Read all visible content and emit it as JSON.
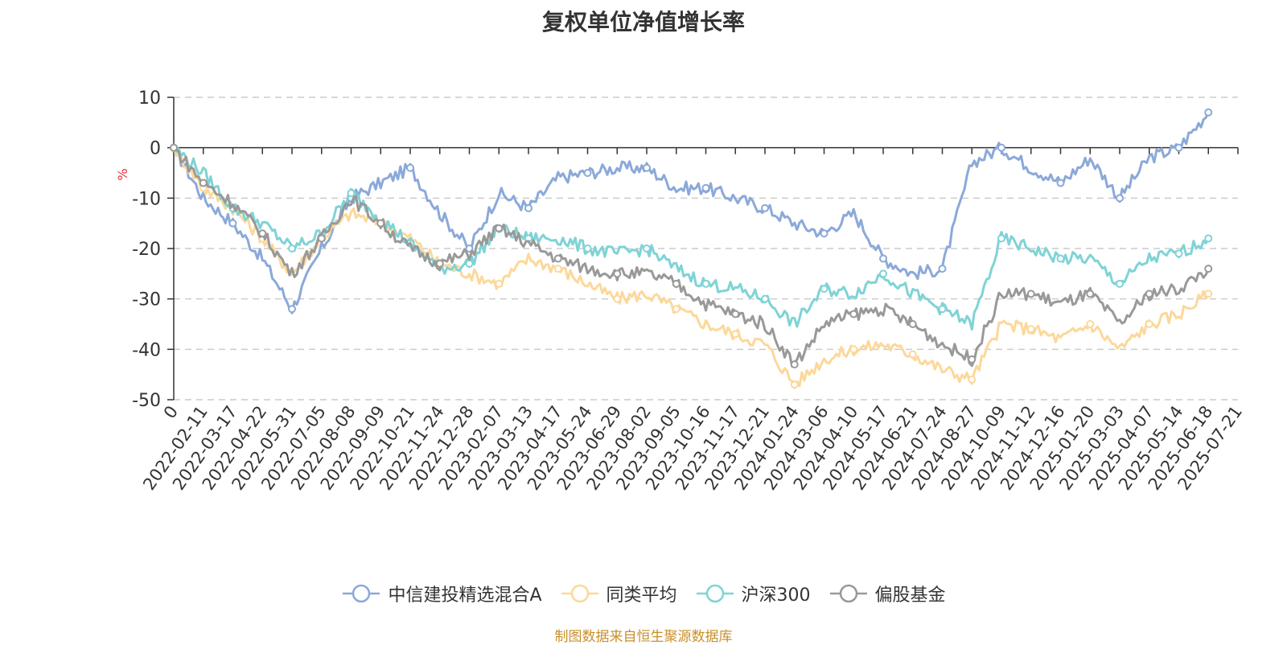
{
  "title": "复权单位净值增长率",
  "footer": "制图数据来自恒生聚源数据库",
  "chart_data": {
    "type": "line",
    "ylabel": "%",
    "ylim": [
      -50,
      10
    ],
    "yticks": [
      10,
      0,
      -10,
      -20,
      -30,
      -40,
      -50
    ],
    "grid": true,
    "legend_position": "bottom",
    "x_start": "0",
    "x": [
      "2022-02-11",
      "2022-03-17",
      "2022-04-22",
      "2022-05-31",
      "2022-07-05",
      "2022-08-08",
      "2022-09-09",
      "2022-10-21",
      "2022-11-24",
      "2022-12-28",
      "2023-02-07",
      "2023-03-13",
      "2023-04-17",
      "2023-05-24",
      "2023-06-29",
      "2023-08-02",
      "2023-09-05",
      "2023-10-16",
      "2023-11-17",
      "2023-12-21",
      "2024-01-24",
      "2024-03-06",
      "2024-04-10",
      "2024-05-17",
      "2024-06-21",
      "2024-07-24",
      "2024-08-27",
      "2024-10-09",
      "2024-11-12",
      "2024-12-16",
      "2025-01-20",
      "2025-03-03",
      "2025-04-07",
      "2025-05-14",
      "2025-06-18",
      "2025-07-21"
    ],
    "series": [
      {
        "name": "中信建投精选混合A",
        "color": "#8ba9d9",
        "values": [
          0,
          -10,
          -15,
          -22,
          -32,
          -20,
          -10,
          -7,
          -4,
          -13,
          -20,
          -9,
          -12,
          -6,
          -5,
          -4,
          -4,
          -8,
          -8,
          -10,
          -12,
          -15,
          -17,
          -13,
          -22,
          -25,
          -24,
          -3,
          0,
          -4,
          -7,
          -2,
          -10,
          -2,
          0,
          7
        ]
      },
      {
        "name": "同类平均",
        "color": "#fcd89a",
        "values": [
          0,
          -8,
          -12,
          -18,
          -25,
          -18,
          -13,
          -15,
          -18,
          -23,
          -25,
          -27,
          -22,
          -24,
          -27,
          -30,
          -29,
          -32,
          -35,
          -37,
          -39,
          -47,
          -42,
          -40,
          -39,
          -41,
          -44,
          -46,
          -35,
          -36,
          -38,
          -35,
          -40,
          -35,
          -33,
          -29
        ]
      },
      {
        "name": "沪深300",
        "color": "#7fd3d6",
        "values": [
          0,
          -5,
          -12,
          -15,
          -20,
          -17,
          -9,
          -14,
          -19,
          -24,
          -23,
          -16,
          -18,
          -18,
          -20,
          -21,
          -20,
          -24,
          -27,
          -28,
          -30,
          -35,
          -28,
          -29,
          -25,
          -29,
          -32,
          -35,
          -18,
          -20,
          -22,
          -22,
          -27,
          -22,
          -21,
          -18
        ]
      },
      {
        "name": "偏股基金",
        "color": "#999999",
        "values": [
          0,
          -7,
          -11,
          -17,
          -25,
          -18,
          -10,
          -15,
          -20,
          -23,
          -21,
          -16,
          -19,
          -22,
          -24,
          -25,
          -25,
          -27,
          -31,
          -33,
          -35,
          -43,
          -35,
          -33,
          -32,
          -35,
          -39,
          -42,
          -29,
          -29,
          -31,
          -29,
          -35,
          -29,
          -28,
          -24
        ]
      }
    ]
  }
}
